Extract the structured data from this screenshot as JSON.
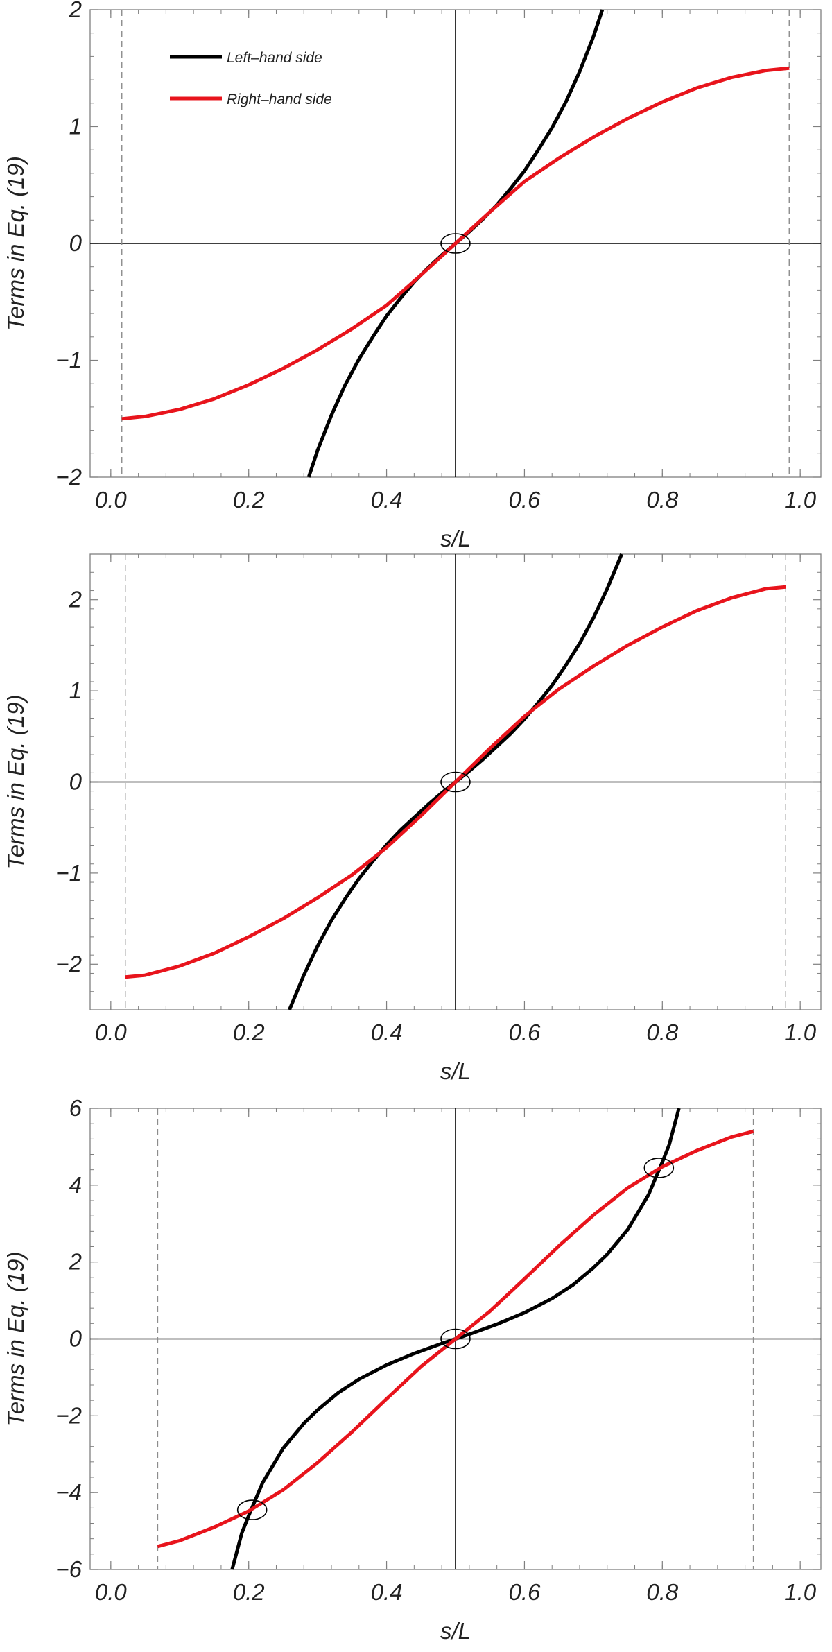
{
  "chart_data": [
    {
      "type": "line",
      "xlabel": "s/L",
      "ylabel": "Terms in Eq. (19)",
      "xlim": [
        -0.03,
        1.03
      ],
      "ylim": [
        -2,
        2
      ],
      "xticks": [
        0.0,
        0.2,
        0.4,
        0.6,
        0.8,
        1.0
      ],
      "xtick_labels": [
        "0.0",
        "0.2",
        "0.4",
        "0.6",
        "0.8",
        "1.0"
      ],
      "yticks": [
        -2,
        -1,
        0,
        1,
        2
      ],
      "ytick_labels": [
        "−2",
        "−1",
        "0",
        "1",
        "2"
      ],
      "grid": false,
      "legend": {
        "placement": "top-left",
        "entries": [
          "Left–hand side",
          "Right–hand side"
        ]
      },
      "vlines_dashed": [
        0.016,
        0.984
      ],
      "center_axes": {
        "x": 0.5,
        "y": 0
      },
      "intersections": [
        {
          "x": 0.5,
          "y": 0
        }
      ],
      "series": [
        {
          "name": "Left–hand side",
          "color": "#000000",
          "x": [
            0.287,
            0.3,
            0.32,
            0.34,
            0.36,
            0.38,
            0.4,
            0.42,
            0.44,
            0.46,
            0.48,
            0.5,
            0.52,
            0.54,
            0.56,
            0.58,
            0.6,
            0.62,
            0.64,
            0.66,
            0.68,
            0.7,
            0.713
          ],
          "y": [
            -2.0,
            -1.77,
            -1.47,
            -1.21,
            -0.99,
            -0.8,
            -0.62,
            -0.47,
            -0.33,
            -0.21,
            -0.1,
            0.0,
            0.1,
            0.21,
            0.33,
            0.47,
            0.62,
            0.8,
            0.99,
            1.21,
            1.47,
            1.77,
            2.0
          ]
        },
        {
          "name": "Right–hand side",
          "color": "#e8141c",
          "x": [
            0.016,
            0.05,
            0.1,
            0.15,
            0.2,
            0.25,
            0.3,
            0.35,
            0.4,
            0.45,
            0.5,
            0.55,
            0.6,
            0.65,
            0.7,
            0.75,
            0.8,
            0.85,
            0.9,
            0.95,
            0.984
          ],
          "y": [
            -1.5,
            -1.48,
            -1.42,
            -1.33,
            -1.21,
            -1.07,
            -0.91,
            -0.73,
            -0.53,
            -0.27,
            0.0,
            0.27,
            0.53,
            0.73,
            0.91,
            1.07,
            1.21,
            1.33,
            1.42,
            1.48,
            1.5
          ]
        }
      ]
    },
    {
      "type": "line",
      "xlabel": "s/L",
      "ylabel": "Terms in Eq. (19)",
      "xlim": [
        -0.03,
        1.03
      ],
      "ylim": [
        -2.5,
        2.5
      ],
      "xticks": [
        0.0,
        0.2,
        0.4,
        0.6,
        0.8,
        1.0
      ],
      "xtick_labels": [
        "0.0",
        "0.2",
        "0.4",
        "0.6",
        "0.8",
        "1.0"
      ],
      "yticks": [
        -2,
        -1,
        0,
        1,
        2
      ],
      "ytick_labels": [
        "−2",
        "−1",
        "0",
        "1",
        "2"
      ],
      "grid": false,
      "vlines_dashed": [
        0.021,
        0.979
      ],
      "center_axes": {
        "x": 0.5,
        "y": 0
      },
      "intersections": [
        {
          "x": 0.5,
          "y": 0
        }
      ],
      "series": [
        {
          "name": "",
          "color": "#000000",
          "x": [
            0.259,
            0.28,
            0.3,
            0.32,
            0.34,
            0.36,
            0.38,
            0.4,
            0.42,
            0.44,
            0.46,
            0.48,
            0.5,
            0.52,
            0.54,
            0.56,
            0.58,
            0.6,
            0.62,
            0.64,
            0.66,
            0.68,
            0.7,
            0.72,
            0.741
          ],
          "y": [
            -2.5,
            -2.12,
            -1.8,
            -1.52,
            -1.28,
            -1.06,
            -0.87,
            -0.69,
            -0.53,
            -0.39,
            -0.25,
            -0.12,
            0.0,
            0.12,
            0.25,
            0.39,
            0.53,
            0.69,
            0.87,
            1.06,
            1.28,
            1.52,
            1.8,
            2.12,
            2.5
          ]
        },
        {
          "name": "",
          "color": "#e8141c",
          "x": [
            0.021,
            0.05,
            0.1,
            0.15,
            0.2,
            0.25,
            0.3,
            0.35,
            0.4,
            0.45,
            0.5,
            0.55,
            0.6,
            0.65,
            0.7,
            0.75,
            0.8,
            0.85,
            0.9,
            0.95,
            0.979
          ],
          "y": [
            -2.14,
            -2.12,
            -2.02,
            -1.88,
            -1.7,
            -1.5,
            -1.27,
            -1.02,
            -0.72,
            -0.37,
            0.0,
            0.37,
            0.72,
            1.02,
            1.27,
            1.5,
            1.7,
            1.88,
            2.02,
            2.12,
            2.14
          ]
        }
      ]
    },
    {
      "type": "line",
      "xlabel": "s/L",
      "ylabel": "Terms in Eq. (19)",
      "xlim": [
        -0.03,
        1.03
      ],
      "ylim": [
        -6,
        6
      ],
      "xticks": [
        0.0,
        0.2,
        0.4,
        0.6,
        0.8,
        1.0
      ],
      "xtick_labels": [
        "0.0",
        "0.2",
        "0.4",
        "0.6",
        "0.8",
        "1.0"
      ],
      "yticks": [
        -6,
        -4,
        -2,
        0,
        2,
        4,
        6
      ],
      "ytick_labels": [
        "−6",
        "−4",
        "−2",
        "0",
        "2",
        "4",
        "6"
      ],
      "grid": false,
      "vlines_dashed": [
        0.068,
        0.932
      ],
      "center_axes": {
        "x": 0.5,
        "y": 0
      },
      "intersections": [
        {
          "x": 0.205,
          "y": -4.45
        },
        {
          "x": 0.5,
          "y": 0
        },
        {
          "x": 0.795,
          "y": 4.45
        }
      ],
      "series": [
        {
          "name": "",
          "color": "#000000",
          "x": [
            0.176,
            0.19,
            0.2,
            0.22,
            0.25,
            0.28,
            0.3,
            0.33,
            0.36,
            0.4,
            0.44,
            0.48,
            0.5,
            0.52,
            0.56,
            0.6,
            0.64,
            0.67,
            0.7,
            0.72,
            0.75,
            0.78,
            0.8,
            0.81,
            0.824
          ],
          "y": [
            -6.0,
            -5.05,
            -4.6,
            -3.75,
            -2.85,
            -2.2,
            -1.85,
            -1.4,
            -1.05,
            -0.68,
            -0.38,
            -0.12,
            0.0,
            0.12,
            0.38,
            0.68,
            1.05,
            1.4,
            1.85,
            2.2,
            2.85,
            3.75,
            4.6,
            5.05,
            6.0
          ]
        },
        {
          "name": "",
          "color": "#e8141c",
          "x": [
            0.068,
            0.1,
            0.15,
            0.2,
            0.25,
            0.3,
            0.35,
            0.4,
            0.45,
            0.5,
            0.55,
            0.6,
            0.65,
            0.7,
            0.75,
            0.8,
            0.85,
            0.9,
            0.932
          ],
          "y": [
            -5.4,
            -5.25,
            -4.9,
            -4.48,
            -3.93,
            -3.22,
            -2.42,
            -1.56,
            -0.72,
            0.0,
            0.72,
            1.56,
            2.42,
            3.22,
            3.93,
            4.48,
            4.9,
            5.25,
            5.4
          ]
        }
      ]
    }
  ]
}
